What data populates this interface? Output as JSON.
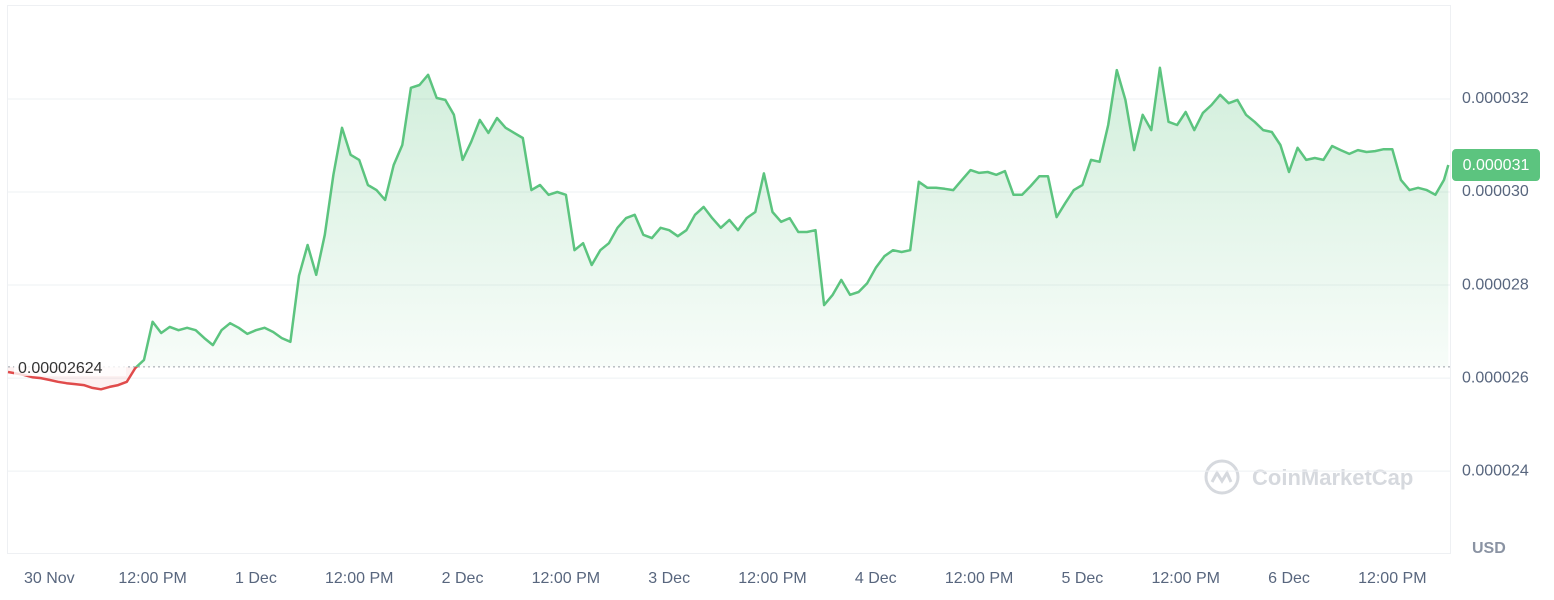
{
  "chart_data": {
    "type": "line",
    "x": [
      -4.8,
      -3,
      -2,
      -1,
      0,
      1,
      2,
      3,
      4,
      5,
      6,
      7,
      8,
      9,
      10,
      11,
      12,
      13,
      14,
      15,
      16,
      17,
      18,
      19,
      20,
      21,
      22,
      23,
      24,
      25,
      26,
      27,
      28,
      29,
      30,
      31,
      32,
      33,
      34,
      35,
      36,
      37,
      38,
      39,
      40,
      41,
      42,
      43,
      44,
      45,
      46,
      47,
      48,
      49,
      50,
      51,
      52,
      53,
      54,
      55,
      56,
      57,
      58,
      59,
      60,
      61,
      62,
      63,
      64,
      65,
      66,
      67,
      68,
      69,
      70,
      71,
      72,
      73,
      74,
      75,
      76,
      77,
      78,
      79,
      80,
      81,
      82,
      83,
      84,
      85,
      86,
      87,
      88,
      89,
      90,
      91,
      92,
      93,
      94,
      95,
      96,
      97,
      98,
      99,
      100,
      101,
      102,
      103,
      104,
      105,
      106,
      107,
      108,
      109,
      110,
      111,
      112,
      113,
      114,
      115,
      116,
      117,
      118,
      119,
      120,
      121,
      122,
      123,
      124,
      125,
      126,
      127,
      128,
      129,
      130,
      131,
      132,
      133,
      134,
      135,
      136,
      137,
      138,
      139,
      140,
      141,
      142,
      143,
      144,
      145,
      146,
      147,
      148,
      149,
      150,
      151,
      152,
      153,
      154,
      155,
      156,
      157,
      158,
      159,
      160,
      161,
      162,
      162.5
    ],
    "values": [
      2.613e-05,
      2.607e-05,
      2.602e-05,
      2.6e-05,
      2.596e-05,
      2.592e-05,
      2.589e-05,
      2.587e-05,
      2.585e-05,
      2.579e-05,
      2.576e-05,
      2.581e-05,
      2.585e-05,
      2.592e-05,
      2.622e-05,
      2.639e-05,
      2.721e-05,
      2.697e-05,
      2.71e-05,
      2.703e-05,
      2.708e-05,
      2.703e-05,
      2.686e-05,
      2.671e-05,
      2.703e-05,
      2.718e-05,
      2.708e-05,
      2.695e-05,
      2.703e-05,
      2.708e-05,
      2.699e-05,
      2.686e-05,
      2.678e-05,
      2.82e-05,
      2.886e-05,
      2.822e-05,
      2.908e-05,
      3.037e-05,
      3.138e-05,
      3.08e-05,
      3.069e-05,
      3.015e-05,
      3.004e-05,
      2.983e-05,
      3.058e-05,
      3.101e-05,
      3.224e-05,
      3.23e-05,
      3.252e-05,
      3.202e-05,
      3.198e-05,
      3.166e-05,
      3.069e-05,
      3.108e-05,
      3.155e-05,
      3.127e-05,
      3.159e-05,
      3.138e-05,
      3.127e-05,
      3.116e-05,
      3.004e-05,
      3.015e-05,
      2.994e-05,
      3e-05,
      2.994e-05,
      2.875e-05,
      2.89e-05,
      2.843e-05,
      2.875e-05,
      2.89e-05,
      2.923e-05,
      2.944e-05,
      2.951e-05,
      2.908e-05,
      2.901e-05,
      2.923e-05,
      2.918e-05,
      2.905e-05,
      2.918e-05,
      2.951e-05,
      2.968e-05,
      2.944e-05,
      2.923e-05,
      2.94e-05,
      2.918e-05,
      2.944e-05,
      2.957e-05,
      3.04e-05,
      2.957e-05,
      2.936e-05,
      2.944e-05,
      2.914e-05,
      2.914e-05,
      2.918e-05,
      2.757e-05,
      2.779e-05,
      2.811e-05,
      2.779e-05,
      2.785e-05,
      2.804e-05,
      2.837e-05,
      2.862e-05,
      2.875e-05,
      2.871e-05,
      2.875e-05,
      3.022e-05,
      3.009e-05,
      3.009e-05,
      3.007e-05,
      3.004e-05,
      3.026e-05,
      3.047e-05,
      3.041e-05,
      3.043e-05,
      3.037e-05,
      3.045e-05,
      2.994e-05,
      2.994e-05,
      3.013e-05,
      3.034e-05,
      3.034e-05,
      2.946e-05,
      2.976e-05,
      3.004e-05,
      3.015e-05,
      3.069e-05,
      3.065e-05,
      3.144e-05,
      3.262e-05,
      3.198e-05,
      3.09e-05,
      3.166e-05,
      3.133e-05,
      3.267e-05,
      3.151e-05,
      3.144e-05,
      3.172e-05,
      3.133e-05,
      3.17e-05,
      3.187e-05,
      3.209e-05,
      3.191e-05,
      3.198e-05,
      3.166e-05,
      3.151e-05,
      3.133e-05,
      3.129e-05,
      3.101e-05,
      3.043e-05,
      3.095e-05,
      3.069e-05,
      3.073e-05,
      3.069e-05,
      3.099e-05,
      3.09e-05,
      3.082e-05,
      3.09e-05,
      3.086e-05,
      3.088e-05,
      3.092e-05,
      3.092e-05,
      3.026e-05,
      3.004e-05,
      3.009e-05,
      3.004e-05,
      2.994e-05,
      3.026e-05,
      3.058e-05
    ],
    "xlim": [
      -4.8,
      162.7
    ],
    "xticks": [
      {
        "value": 0,
        "label": "30 Nov"
      },
      {
        "value": 12,
        "label": "12:00 PM"
      },
      {
        "value": 24,
        "label": "1 Dec"
      },
      {
        "value": 36,
        "label": "12:00 PM"
      },
      {
        "value": 48,
        "label": "2 Dec"
      },
      {
        "value": 60,
        "label": "12:00 PM"
      },
      {
        "value": 72,
        "label": "3 Dec"
      },
      {
        "value": 84,
        "label": "12:00 PM"
      },
      {
        "value": 96,
        "label": "4 Dec"
      },
      {
        "value": 108,
        "label": "12:00 PM"
      },
      {
        "value": 120,
        "label": "5 Dec"
      },
      {
        "value": 132,
        "label": "12:00 PM"
      },
      {
        "value": 144,
        "label": "6 Dec"
      },
      {
        "value": 156,
        "label": "12:00 PM"
      }
    ],
    "ylim": [
      2.224e-05,
      3.402e-05
    ],
    "yticks": [
      2.4e-05,
      2.6e-05,
      2.8e-05,
      {
        "value": 3e-05,
        "label": "0.000030"
      },
      3.2e-05
    ],
    "baseline": 2.624e-05,
    "last_price": {
      "value": 3.058e-05,
      "label": "0.000031"
    },
    "up_color": "#5cc47f",
    "down_color": "#e04b4b",
    "grid": true,
    "y_unit": "USD",
    "watermark": "CoinMarketCap"
  }
}
